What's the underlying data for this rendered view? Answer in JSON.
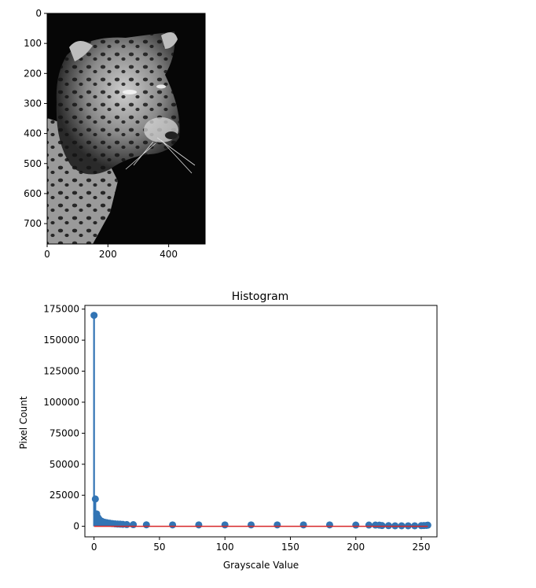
{
  "chart_data": [
    {
      "type": "image",
      "description_axes": "imshow",
      "xlim": [
        0,
        520
      ],
      "ylim": [
        768,
        0
      ],
      "xticks": [
        0,
        200,
        400
      ],
      "yticks": [
        0,
        100,
        200,
        300,
        400,
        500,
        600,
        700
      ],
      "image_content": "grayscale-jaguar-portrait"
    },
    {
      "type": "stem",
      "title": "Histogram",
      "xlabel": "Grayscale Value",
      "ylabel": "Pixel Count",
      "xlim": [
        -7,
        262
      ],
      "ylim": [
        -8500,
        178000
      ],
      "xticks": [
        0,
        50,
        100,
        150,
        200,
        250
      ],
      "yticks": [
        0,
        25000,
        50000,
        75000,
        100000,
        125000,
        150000,
        175000
      ],
      "grid": false,
      "colors": {
        "stem": "#3274b4",
        "baseline": "#d62728"
      },
      "x": [
        0,
        1,
        2,
        3,
        4,
        5,
        6,
        7,
        8,
        9,
        10,
        12,
        14,
        16,
        18,
        20,
        22,
        25,
        30,
        40,
        60,
        80,
        100,
        120,
        140,
        160,
        180,
        200,
        210,
        215,
        218,
        220,
        225,
        230,
        235,
        240,
        245,
        250,
        252,
        254,
        255
      ],
      "values": [
        170000,
        22000,
        10000,
        7000,
        5500,
        4500,
        4000,
        3500,
        3200,
        3000,
        2800,
        2500,
        2200,
        2000,
        1800,
        1700,
        1600,
        1400,
        1300,
        1200,
        1100,
        1100,
        1100,
        1100,
        1100,
        1100,
        1100,
        1000,
        1000,
        1000,
        900,
        600,
        500,
        400,
        400,
        400,
        400,
        500,
        600,
        700,
        900
      ]
    }
  ]
}
